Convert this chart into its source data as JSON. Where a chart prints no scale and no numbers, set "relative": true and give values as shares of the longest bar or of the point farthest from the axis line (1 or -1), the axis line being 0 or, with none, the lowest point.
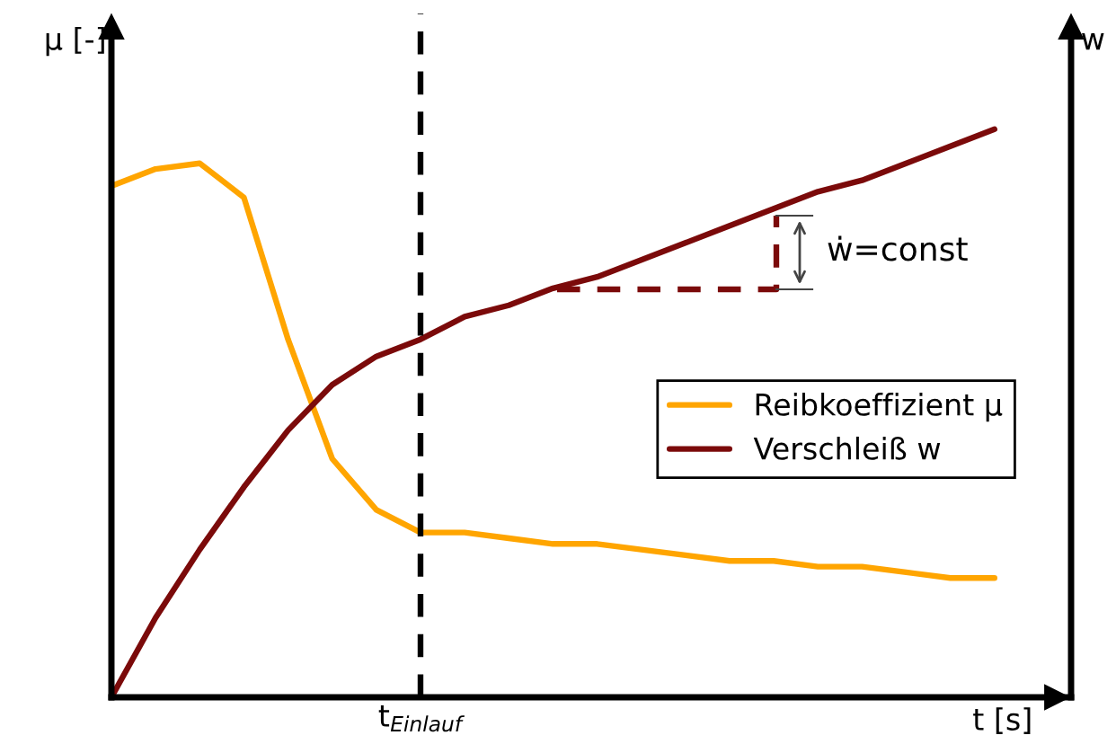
{
  "chart_data": {
    "type": "line",
    "relative": true,
    "xlabel": "t [s]",
    "ylabel": "μ [-]",
    "y2label": "w",
    "categories": [
      null,
      null,
      null,
      null,
      null,
      null,
      null,
      null,
      null,
      null,
      null,
      null,
      null,
      null,
      null,
      null,
      null,
      null,
      null,
      null,
      null
    ],
    "series": [
      {
        "name": "Reibkoeffizient μ",
        "color": "#ffa500",
        "values": [
          0.9,
          0.93,
          0.94,
          0.88,
          0.63,
          0.42,
          0.33,
          0.29,
          0.29,
          0.28,
          0.27,
          0.27,
          0.26,
          0.25,
          0.24,
          0.24,
          0.23,
          0.23,
          0.22,
          0.21,
          0.21
        ]
      },
      {
        "name": "Verschleiß w",
        "color": "#7b0a0a",
        "values": [
          0,
          0.14,
          0.26,
          0.37,
          0.47,
          0.55,
          0.6,
          0.63,
          0.67,
          0.69,
          0.72,
          0.74,
          0.77,
          0.8,
          0.83,
          0.86,
          0.89,
          0.91,
          0.94,
          0.97,
          1
        ]
      }
    ],
    "annotations": [
      "ẇ=const",
      "t$_{Einlauf}$"
    ],
    "legend": "right",
    "marker": "none",
    "line_style": "solid"
  }
}
